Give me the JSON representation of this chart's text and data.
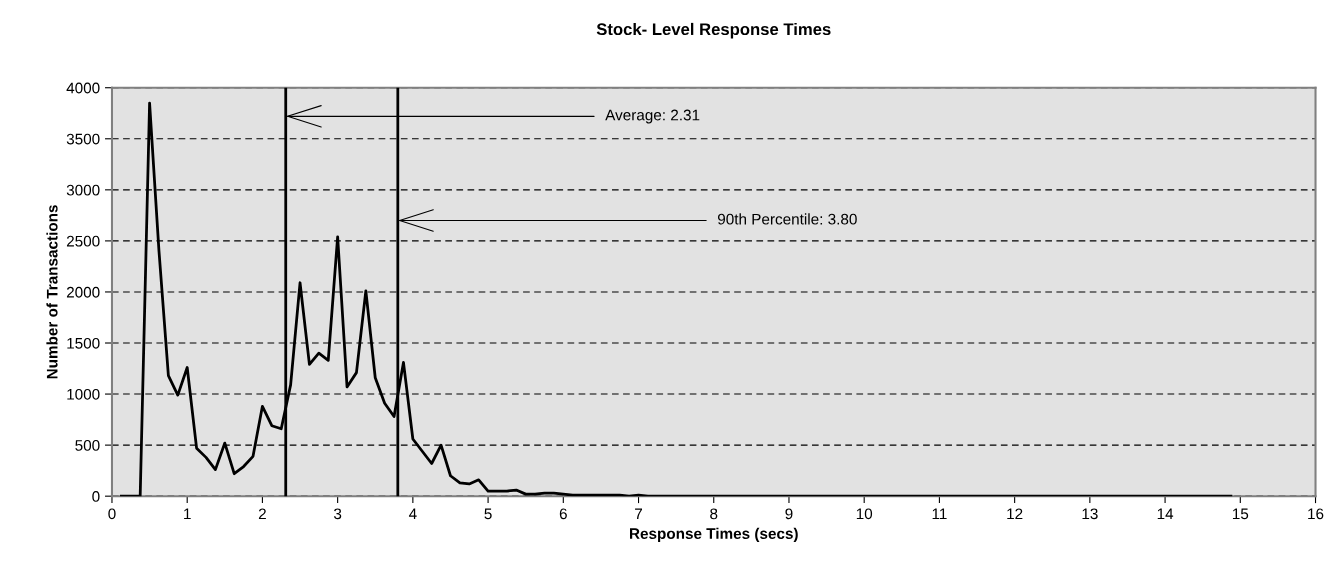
{
  "chart_data": {
    "type": "line",
    "title": "Stock- Level Response Times",
    "xlabel": "Response Times (secs)",
    "ylabel": "Number of Transactions",
    "xlim": [
      0,
      16
    ],
    "xticks": [
      0,
      1,
      2,
      3,
      4,
      5,
      6,
      7,
      8,
      9,
      10,
      11,
      12,
      13,
      14,
      15,
      16
    ],
    "ylim": [
      0,
      4000
    ],
    "yticks": [
      0,
      500,
      1000,
      1500,
      2000,
      2500,
      3000,
      3500,
      4000
    ],
    "grid": "y",
    "marker": "none",
    "line_style": "solid",
    "series": [
      {
        "color": "#000000",
        "x": [
          0.125,
          0.25,
          0.375,
          0.5,
          0.625,
          0.75,
          0.875,
          1.0,
          1.125,
          1.25,
          1.375,
          1.5,
          1.625,
          1.75,
          1.875,
          2.0,
          2.125,
          2.25,
          2.375,
          2.5,
          2.625,
          2.75,
          2.875,
          3.0,
          3.125,
          3.25,
          3.375,
          3.5,
          3.625,
          3.75,
          3.875,
          4.0,
          4.125,
          4.25,
          4.375,
          4.5,
          4.625,
          4.75,
          4.875,
          5.0,
          5.125,
          5.25,
          5.375,
          5.5,
          5.625,
          5.75,
          5.875,
          6.0,
          6.125,
          6.25,
          6.375,
          6.5,
          6.625,
          6.75,
          6.875,
          7.0,
          7.125,
          7.25,
          7.375,
          7.5,
          7.625,
          7.75,
          7.875,
          8.0,
          8.125,
          8.25,
          8.375,
          8.5,
          8.625,
          8.75,
          8.875,
          9.0,
          9.125,
          9.25,
          9.375,
          9.5,
          9.625,
          9.75,
          9.875,
          10.0,
          10.125,
          10.25,
          10.375,
          10.5,
          10.625,
          10.75,
          10.875,
          11.0,
          11.125,
          11.25,
          11.375,
          11.5,
          11.625,
          11.75,
          11.875,
          12.0,
          12.125,
          12.25,
          12.375,
          12.5,
          12.625,
          12.75,
          12.875,
          13.0,
          13.125,
          13.25,
          13.375,
          13.5,
          13.625,
          13.75,
          13.875,
          14.0,
          14.125,
          14.25,
          14.375,
          14.5,
          14.625,
          14.75,
          14.875
        ],
        "values": [
          0,
          0,
          0,
          3850,
          2400,
          1180,
          990,
          1260,
          470,
          380,
          260,
          520,
          220,
          290,
          390,
          880,
          690,
          660,
          1090,
          2090,
          1290,
          1400,
          1330,
          2540,
          1070,
          1210,
          2010,
          1160,
          910,
          780,
          1310,
          560,
          440,
          320,
          500,
          200,
          130,
          120,
          160,
          50,
          50,
          50,
          60,
          20,
          20,
          30,
          30,
          20,
          10,
          10,
          10,
          10,
          10,
          10,
          0,
          10,
          0,
          0,
          0,
          0,
          0,
          0,
          0,
          0,
          0,
          0,
          0,
          0,
          0,
          0,
          0,
          0,
          0,
          0,
          0,
          0,
          0,
          0,
          0,
          0,
          0,
          0,
          0,
          0,
          0,
          0,
          0,
          0,
          0,
          0,
          0,
          0,
          0,
          0,
          0,
          0,
          0,
          0,
          0,
          0,
          0,
          0,
          0,
          0,
          0,
          0,
          0,
          0,
          0,
          0,
          0,
          0,
          0,
          0,
          0,
          0,
          0,
          0,
          0
        ]
      }
    ],
    "ref_lines": [
      {
        "axis": "x",
        "value": 2.31,
        "color": "#000000"
      },
      {
        "axis": "x",
        "value": 3.8,
        "color": "#000000"
      }
    ],
    "annotations": [
      {
        "text": "Average: 2.31",
        "x": 2.31,
        "y": 3720
      },
      {
        "text": "90th Percentile: 3.80",
        "x": 3.8,
        "y": 2700
      }
    ]
  }
}
